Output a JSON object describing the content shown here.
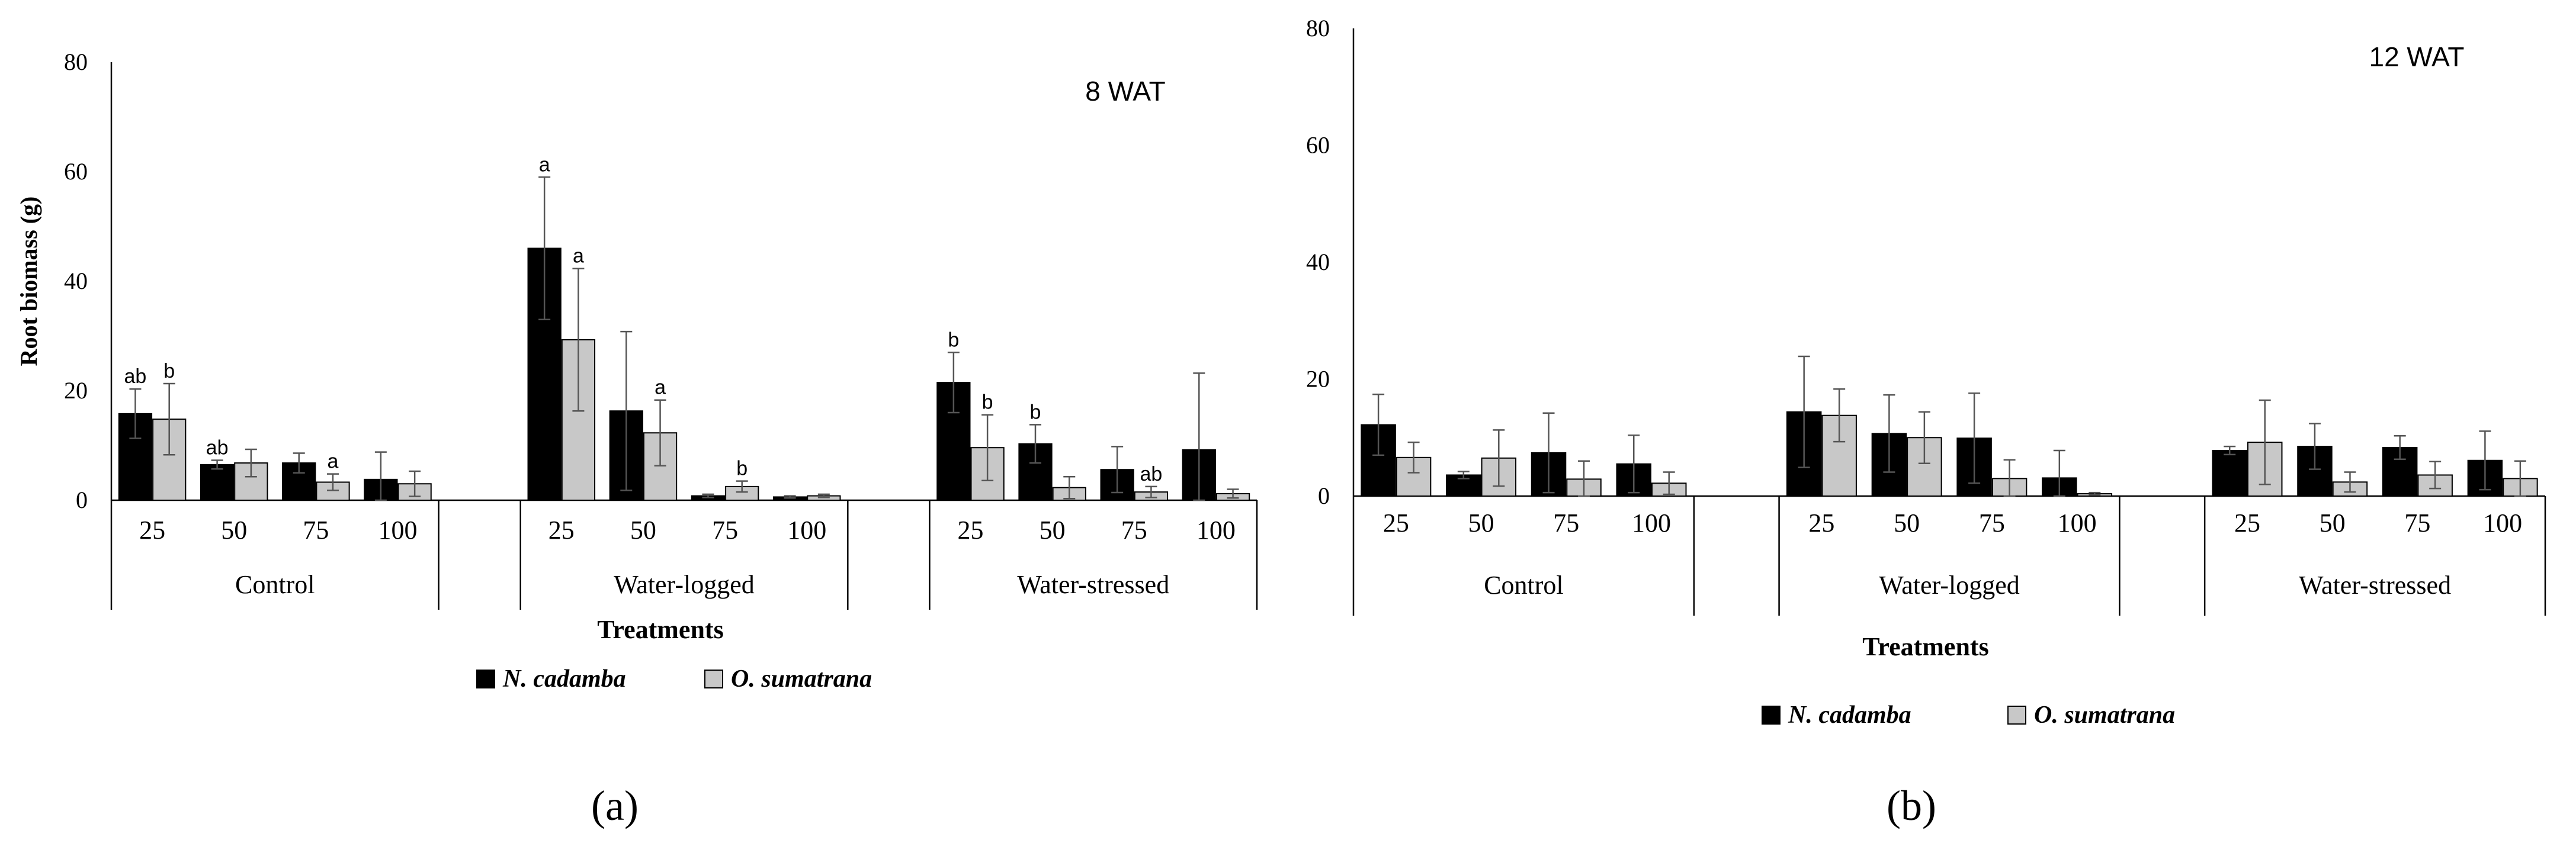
{
  "chart_data": [
    {
      "type": "bar",
      "panel": "(a)",
      "title": "8 WAT",
      "ylabel": "Root biomass (g)",
      "xlabel": "Treatments",
      "ylim": [
        0,
        80
      ],
      "yticks": [
        "0",
        "20",
        "40",
        "60",
        "80"
      ],
      "groups": [
        {
          "name": "Control",
          "categories": [
            "25",
            "50",
            "75",
            "100"
          ]
        },
        {
          "name": "Water-logged",
          "categories": [
            "25",
            "50",
            "75",
            "100"
          ]
        },
        {
          "name": "Water-stressed",
          "categories": [
            "25",
            "50",
            "75",
            "100"
          ]
        }
      ],
      "series": [
        {
          "name": "N. cadamba",
          "color": "#000000",
          "values": [
            15.8,
            6.5,
            6.8,
            3.8,
            46.0,
            16.3,
            0.8,
            0.6,
            21.5,
            10.3,
            5.6,
            9.2
          ],
          "errors": [
            4.5,
            0.8,
            1.8,
            5.0,
            13.0,
            14.5,
            0.3,
            0.2,
            5.5,
            3.5,
            4.2,
            14.0
          ],
          "labels": [
            "ab",
            "ab",
            "",
            "",
            "a",
            "",
            "",
            "",
            "b",
            "b",
            "",
            ""
          ]
        },
        {
          "name": "O. sumatrana",
          "color": "#c8c8c8",
          "values": [
            14.8,
            6.8,
            3.3,
            3.0,
            29.3,
            12.3,
            2.5,
            0.8,
            9.6,
            2.3,
            1.5,
            1.2
          ],
          "errors": [
            6.5,
            2.5,
            1.5,
            2.3,
            13.0,
            6.0,
            1.0,
            0.3,
            6.0,
            2.0,
            1.0,
            0.8
          ],
          "labels": [
            "b",
            "",
            "a",
            "",
            "a",
            "a",
            "b",
            "",
            "b",
            "",
            "ab",
            ""
          ]
        }
      ],
      "legend": "bottom-center"
    },
    {
      "type": "bar",
      "panel": "(b)",
      "title": "12 WAT",
      "ylabel": "",
      "xlabel": "Treatments",
      "ylim": [
        0,
        80
      ],
      "yticks": [
        "0",
        "20",
        "40",
        "60",
        "80"
      ],
      "groups": [
        {
          "name": "Control",
          "categories": [
            "25",
            "50",
            "75",
            "100"
          ]
        },
        {
          "name": "Water-logged",
          "categories": [
            "25",
            "50",
            "75",
            "100"
          ]
        },
        {
          "name": "Water-stressed",
          "categories": [
            "25",
            "50",
            "75",
            "100"
          ]
        }
      ],
      "series": [
        {
          "name": "N. cadamba",
          "color": "#000000",
          "values": [
            12.2,
            3.6,
            7.4,
            5.5,
            14.4,
            10.7,
            9.9,
            3.1,
            7.8,
            8.5,
            8.3,
            6.1
          ],
          "errors": [
            5.2,
            0.6,
            6.8,
            4.9,
            9.5,
            6.6,
            7.7,
            4.7,
            0.7,
            3.9,
            2.0,
            5.0
          ],
          "labels": [
            "",
            "",
            "",
            "",
            "",
            "",
            "",
            "",
            "",
            "",
            "",
            ""
          ]
        },
        {
          "name": "O. sumatrana",
          "color": "#c8c8c8",
          "values": [
            6.6,
            6.5,
            2.9,
            2.2,
            13.8,
            10.0,
            3.0,
            0.4,
            9.2,
            2.4,
            3.6,
            3.0
          ],
          "errors": [
            2.6,
            4.8,
            3.1,
            1.9,
            4.5,
            4.4,
            3.2,
            0.2,
            7.2,
            1.7,
            2.3,
            3.0
          ],
          "labels": [
            "",
            "",
            "",
            "",
            "",
            "",
            "",
            "",
            "",
            "",
            "",
            ""
          ]
        }
      ],
      "legend": "bottom-center"
    }
  ]
}
